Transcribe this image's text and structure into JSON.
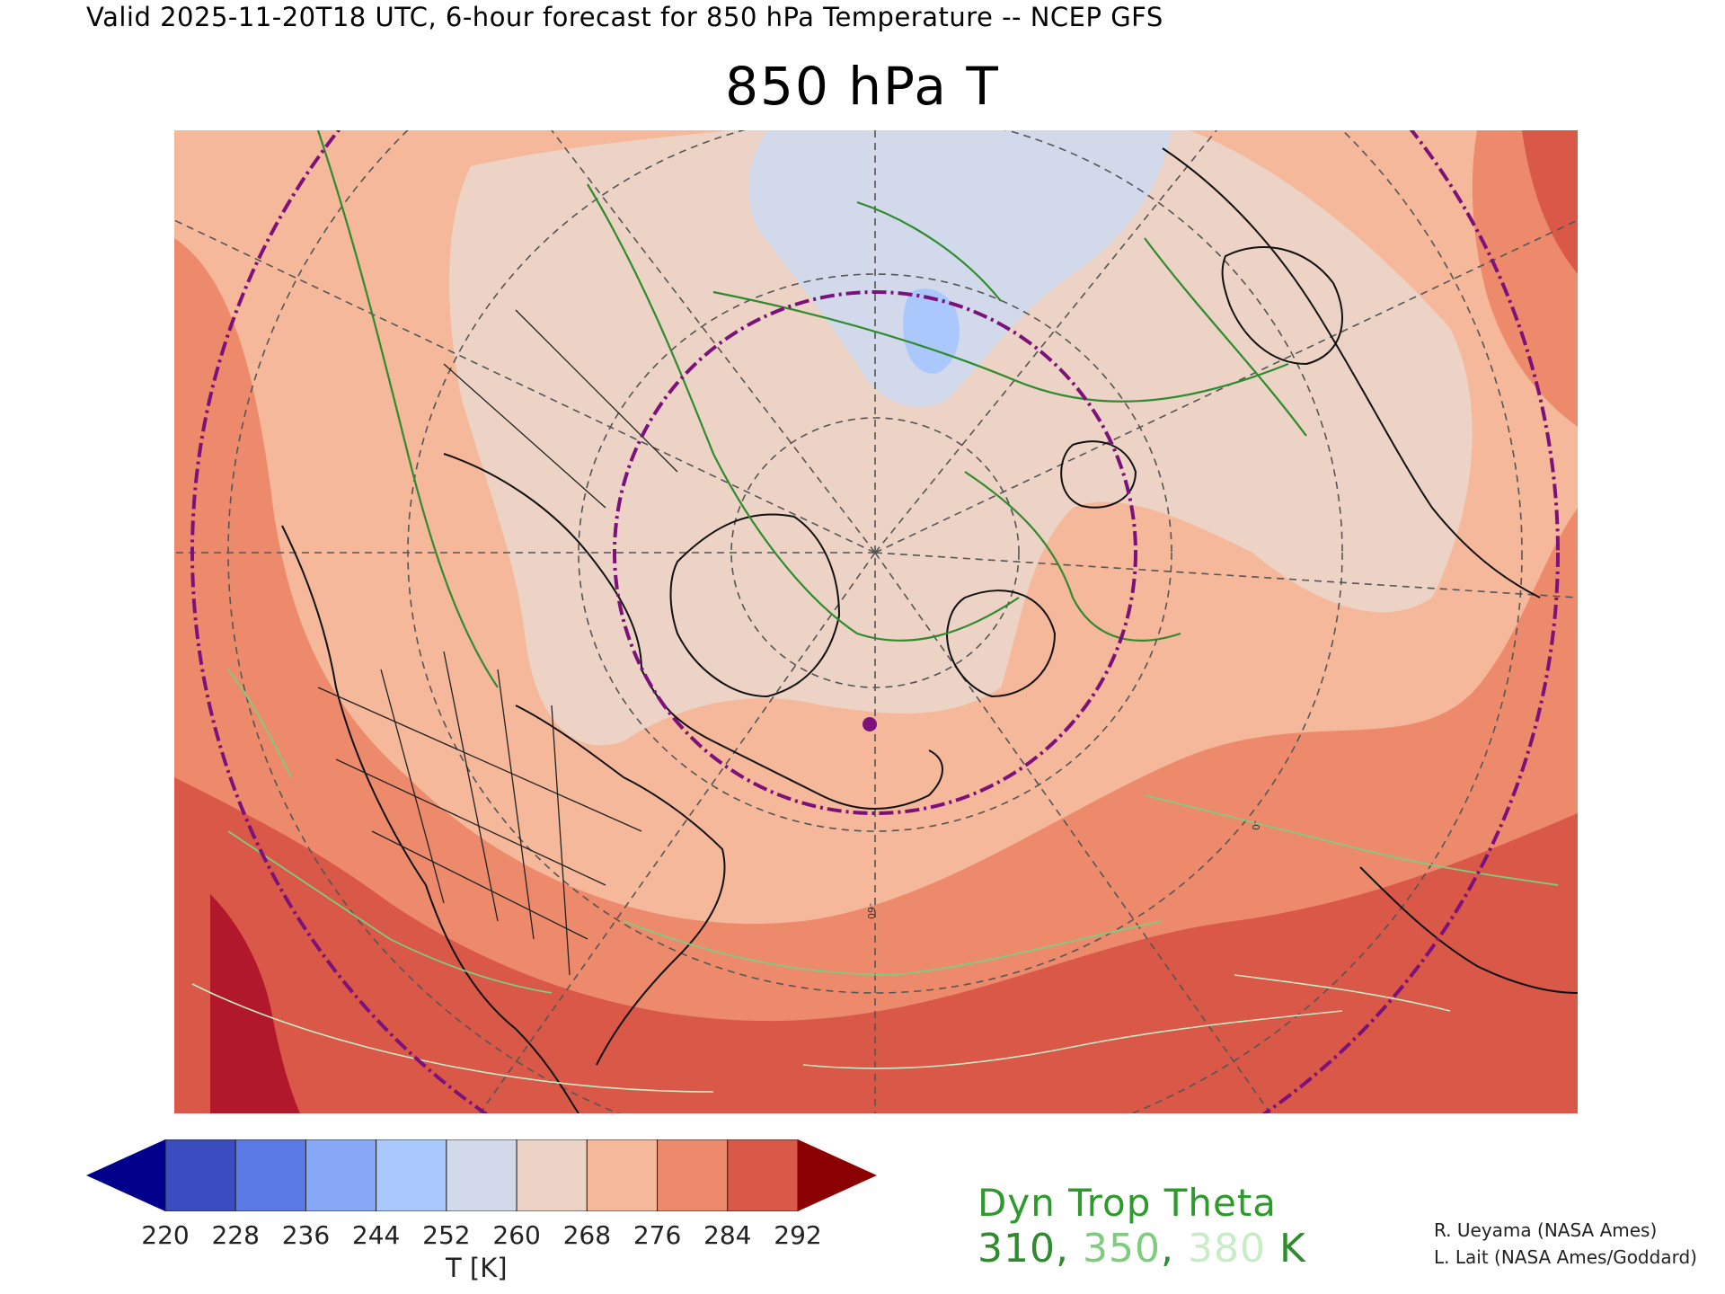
{
  "header": {
    "subtitle": "Valid 2025-11-20T18 UTC, 6-hour forecast for 850 hPa Temperature -- NCEP GFS",
    "title": "850 hPa T"
  },
  "map": {
    "variable": "850 hPa Temperature",
    "units": "K",
    "projection": "polar-stereographic",
    "graticule_labels": [
      "-60",
      "-0"
    ],
    "overlays": [
      "country-borders",
      "state-borders",
      "coastlines",
      "dynamical-tropopause-theta-contours",
      "purple-dash-dot-circles"
    ],
    "marker": {
      "color": "#7b117b"
    }
  },
  "colorbar": {
    "levels": [
      220,
      228,
      236,
      244,
      252,
      260,
      268,
      276,
      284,
      292
    ],
    "labels": [
      "220",
      "228",
      "236",
      "244",
      "252",
      "260",
      "268",
      "276",
      "284",
      "292"
    ],
    "under_color": "#00008b",
    "over_color": "#8b0000",
    "colors": [
      "#3b4cc0",
      "#5b7ae6",
      "#86a8f7",
      "#abc8fd",
      "#d1d9ea",
      "#ecd3c5",
      "#f5b89a",
      "#ee8a6c",
      "#d95847"
    ],
    "units_label": "T [K]"
  },
  "legend": {
    "title": "Dyn Trop Theta",
    "value_1": "310",
    "value_2": "350",
    "value_3": "380",
    "separator": ",",
    "unit": "K",
    "colors": [
      "#2e8b2e",
      "#7fcc7f",
      "#c8ecc8"
    ]
  },
  "credits": {
    "line_1": "R. Ueyama (NASA Ames)",
    "line_2": "L. Lait (NASA Ames/Goddard)"
  }
}
